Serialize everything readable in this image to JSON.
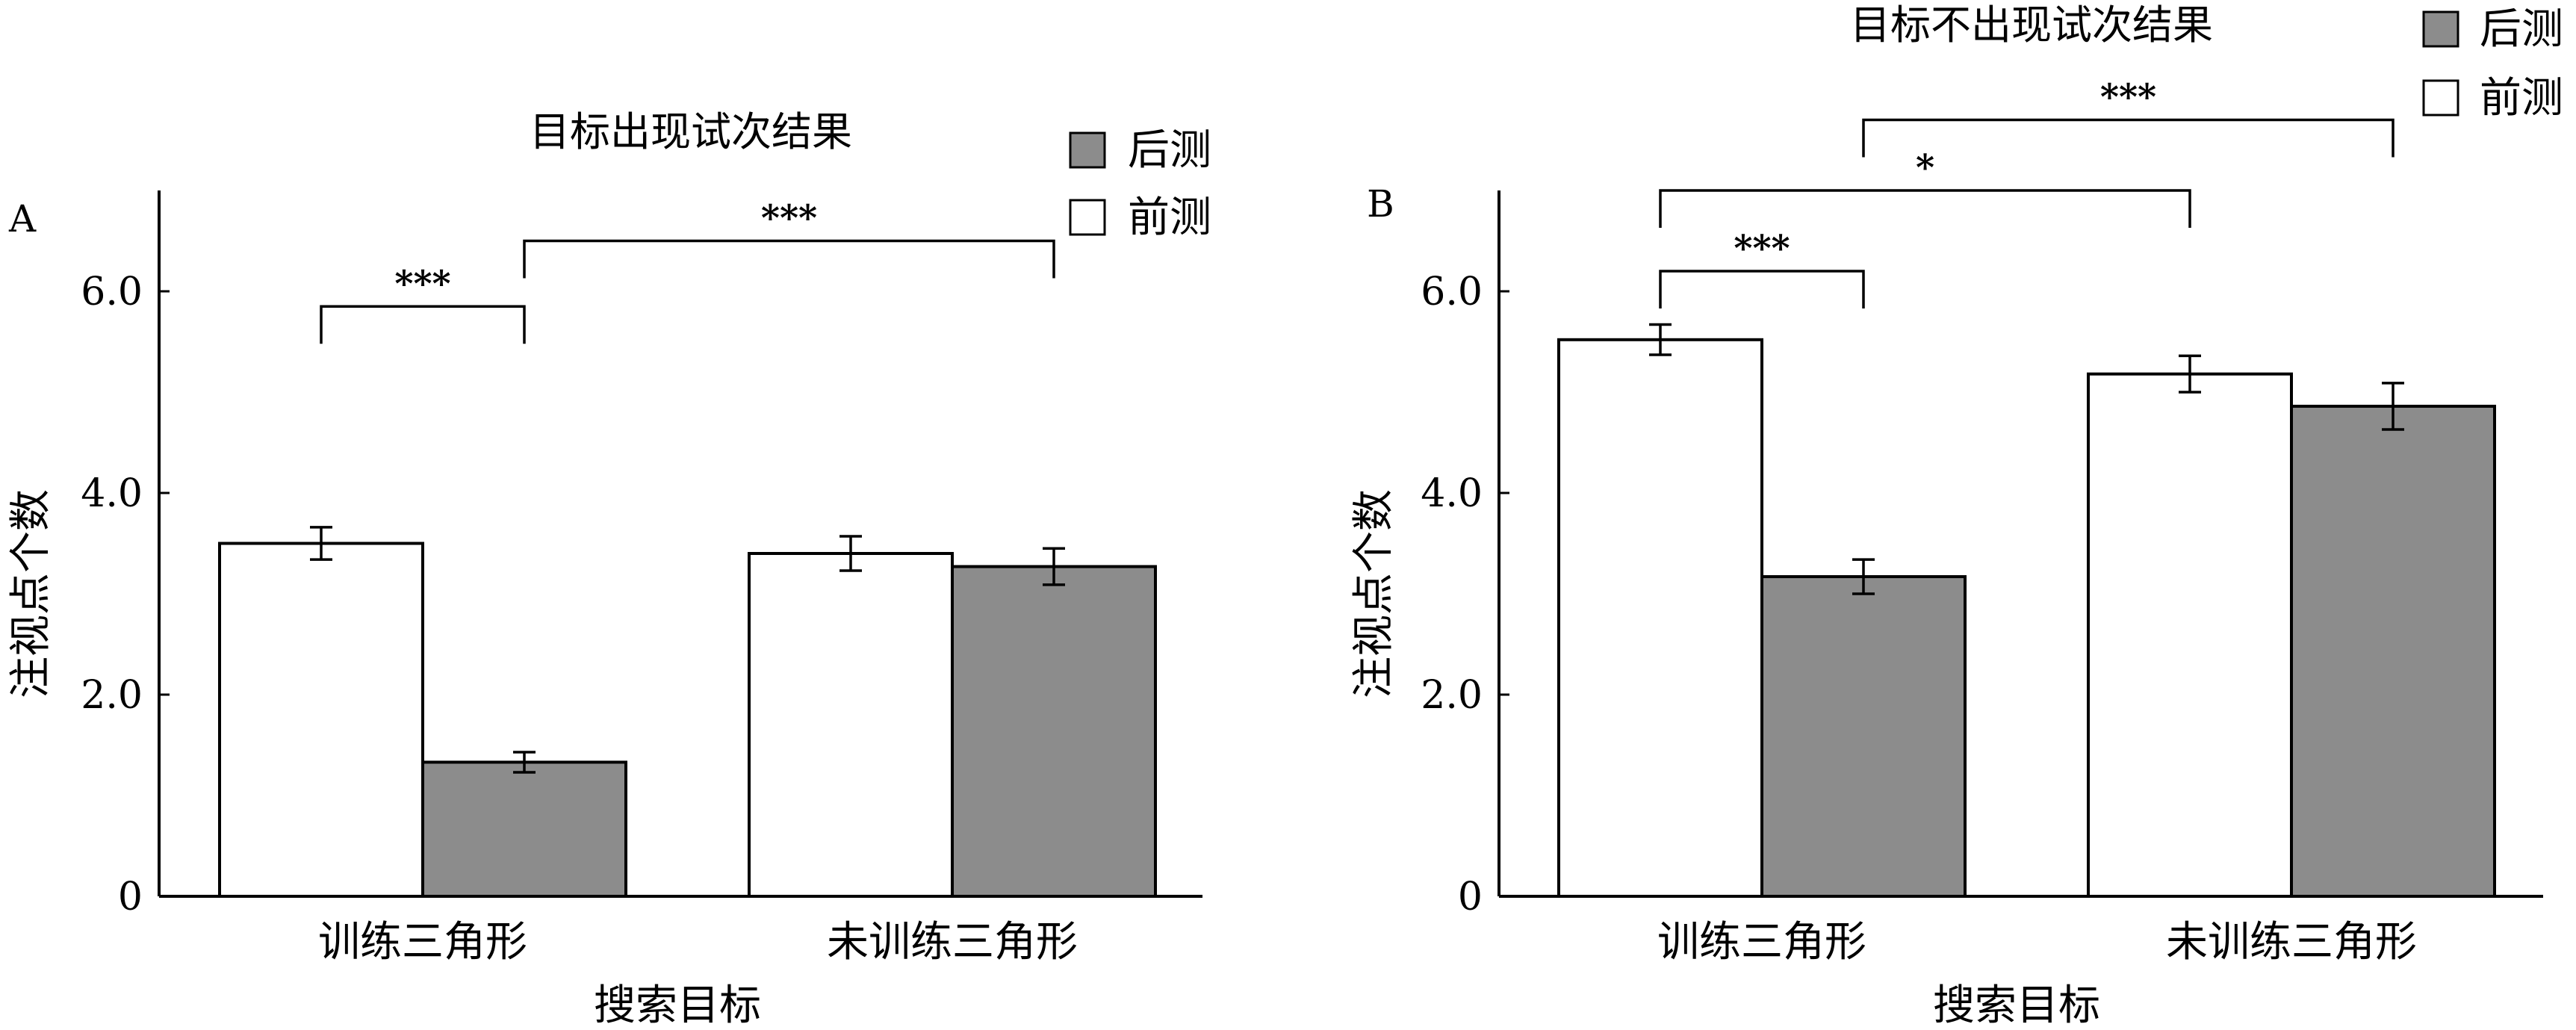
{
  "chart_data": [
    {
      "type": "bar",
      "panel_label": "A",
      "title": "目标出现试次结果",
      "xlabel": "搜索目标",
      "ylabel": "注视点个数",
      "categories": [
        "训练三角形",
        "未训练三角形"
      ],
      "ylim": [
        0,
        7
      ],
      "yticks": [
        0,
        2.0,
        4.0,
        6.0
      ],
      "ytick_labels": [
        "0",
        "2.0",
        "4.0",
        "6.0"
      ],
      "grid": false,
      "legend_position": "top-right",
      "legend": [
        "后测",
        "前测"
      ],
      "series": [
        {
          "name": "前测",
          "color": "#ffffff",
          "values": [
            3.5,
            3.4
          ],
          "errors": [
            0.16,
            0.17
          ]
        },
        {
          "name": "后测",
          "color": "#8c8c8c",
          "values": [
            1.33,
            3.27
          ],
          "errors": [
            0.1,
            0.18
          ]
        }
      ],
      "significance": [
        {
          "label": "***",
          "from": {
            "category": 0,
            "series": 0
          },
          "to": {
            "category": 0,
            "series": 1
          },
          "y": 5.85
        },
        {
          "label": "***",
          "from": {
            "category": 0,
            "series": 1
          },
          "to": {
            "category": 1,
            "series": 1
          },
          "y": 6.5
        }
      ]
    },
    {
      "type": "bar",
      "panel_label": "B",
      "title": "目标不出现试次结果",
      "xlabel": "搜索目标",
      "ylabel": "注视点个数",
      "categories": [
        "训练三角形",
        "未训练三角形"
      ],
      "ylim": [
        0,
        7
      ],
      "yticks": [
        0,
        2.0,
        4.0,
        6.0
      ],
      "ytick_labels": [
        "0",
        "2.0",
        "4.0",
        "6.0"
      ],
      "grid": false,
      "legend_position": "top-right",
      "legend": [
        "后测",
        "前测"
      ],
      "series": [
        {
          "name": "前测",
          "color": "#ffffff",
          "values": [
            5.52,
            5.18
          ],
          "errors": [
            0.15,
            0.18
          ]
        },
        {
          "name": "后测",
          "color": "#8c8c8c",
          "values": [
            3.17,
            4.86
          ],
          "errors": [
            0.17,
            0.23
          ]
        }
      ],
      "significance": [
        {
          "label": "***",
          "from": {
            "category": 0,
            "series": 0
          },
          "to": {
            "category": 0,
            "series": 1
          },
          "y": 6.2
        },
        {
          "label": "*",
          "from": {
            "category": 0,
            "series": 0
          },
          "to": {
            "category": 1,
            "series": 0
          },
          "y": 7.0
        },
        {
          "label": "***",
          "from": {
            "category": 0,
            "series": 1
          },
          "to": {
            "category": 1,
            "series": 1
          },
          "y": 7.7
        }
      ]
    }
  ]
}
